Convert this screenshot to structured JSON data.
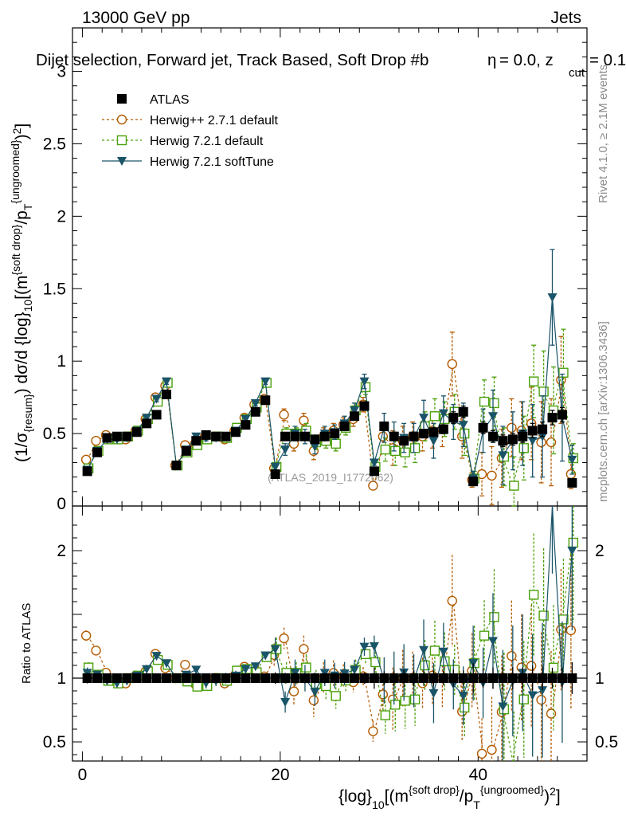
{
  "header": {
    "left": "13000 GeV pp",
    "right": "Jets"
  },
  "chart_data": {
    "type": "line",
    "title": "Dijet selection, Forward jet, Track Based, Soft Drop #b",
    "title_suffix": "= 0.0, z",
    "title_eta": "η",
    "title_cut_sub": "cut",
    "title_tail": " = 0.1",
    "ylabel_parts": [
      "(1/σ",
      "{resum}",
      ") dσ/d {log}",
      "10",
      "[(m",
      "{soft drop}",
      "/p",
      "T",
      "{ungroomed}",
      ")",
      "2",
      "]"
    ],
    "xlabel_parts": [
      "{log}",
      "10",
      "[(m",
      "{soft drop}",
      "/p",
      "T",
      "{ungroomed}",
      ")",
      "2",
      "]"
    ],
    "ratio_ylabel": "Ratio to ATLAS",
    "xlim": [
      -1,
      51
    ],
    "ylim": [
      0,
      3.3
    ],
    "ratio_ylim": [
      0.35,
      2.35
    ],
    "x_ticks": [
      0,
      20,
      40
    ],
    "y_ticks": [
      0.5,
      1,
      1.5,
      2,
      2.5,
      3
    ],
    "y_tick_labels": [
      "0.5",
      "1",
      "1.5",
      "2",
      "2.5",
      "3"
    ],
    "ratio_ticks": [
      0.5,
      1,
      2
    ],
    "ratio_tick_labels": [
      "0.5",
      "1",
      "2"
    ],
    "watermark": "(ATLAS_2019_I1772062)",
    "side_label_top": "Rivet 4.1.0, ≥ 2.1M events",
    "side_label_bottom": "mcplots.cern.ch [arXiv:1306.3436]",
    "x": [
      0.5,
      1.5,
      2.5,
      3.5,
      4.5,
      5.5,
      6.5,
      7.5,
      8.5,
      9.5,
      10.5,
      11.5,
      12.5,
      13.5,
      14.5,
      15.5,
      16.5,
      17.5,
      18.5,
      19.5,
      20.5,
      21.5,
      22.5,
      23.5,
      24.5,
      25.5,
      26.5,
      27.5,
      28.5,
      29.5,
      30.5,
      31.5,
      32.5,
      33.5,
      34.5,
      35.5,
      36.5,
      37.5,
      38.5,
      39.5,
      40.5,
      41.5,
      42.5,
      43.5,
      44.5,
      45.5,
      46.5,
      47.5,
      48.5,
      49.5
    ],
    "series": [
      {
        "name": "ATLAS",
        "color": "#000000",
        "marker": "square-filled",
        "values": [
          0.24,
          0.37,
          0.47,
          0.48,
          0.48,
          0.51,
          0.57,
          0.63,
          0.77,
          0.28,
          0.38,
          0.45,
          0.49,
          0.48,
          0.48,
          0.51,
          0.56,
          0.65,
          0.73,
          0.22,
          0.48,
          0.48,
          0.48,
          0.46,
          0.48,
          0.5,
          0.55,
          0.62,
          0.69,
          0.24,
          0.55,
          0.48,
          0.45,
          0.48,
          0.5,
          0.51,
          0.53,
          0.61,
          0.65,
          0.17,
          0.54,
          0.48,
          0.45,
          0.46,
          0.48,
          0.52,
          0.53,
          0.61,
          0.63,
          0.16
        ],
        "errors": [
          0.01,
          0.01,
          0.01,
          0.01,
          0.01,
          0.01,
          0.01,
          0.01,
          0.02,
          0.01,
          0.01,
          0.01,
          0.01,
          0.01,
          0.01,
          0.01,
          0.01,
          0.02,
          0.02,
          0.01,
          0.02,
          0.02,
          0.02,
          0.02,
          0.02,
          0.02,
          0.02,
          0.02,
          0.03,
          0.02,
          0.03,
          0.03,
          0.03,
          0.03,
          0.03,
          0.03,
          0.03,
          0.04,
          0.04,
          0.02,
          0.04,
          0.04,
          0.04,
          0.04,
          0.04,
          0.05,
          0.05,
          0.05,
          0.05,
          0.02
        ]
      },
      {
        "name": "Herwig++ 2.7.1 default",
        "color": "#b35a00",
        "marker": "circle-open",
        "linestyle": "dashed",
        "values": [
          0.32,
          0.45,
          0.49,
          0.47,
          0.46,
          0.52,
          0.6,
          0.75,
          0.83,
          0.28,
          0.42,
          0.43,
          0.48,
          0.48,
          0.46,
          0.52,
          0.61,
          0.7,
          0.74,
          0.26,
          0.63,
          0.43,
          0.59,
          0.38,
          0.48,
          0.52,
          0.56,
          0.6,
          0.7,
          0.14,
          0.48,
          0.4,
          0.45,
          0.48,
          0.48,
          0.52,
          0.53,
          0.98,
          0.48,
          0.18,
          0.22,
          0.21,
          0.33,
          0.54,
          0.52,
          0.57,
          0.44,
          0.44,
          0.87,
          0.22
        ],
        "errors": [
          0.01,
          0.01,
          0.01,
          0.01,
          0.01,
          0.01,
          0.02,
          0.02,
          0.02,
          0.01,
          0.01,
          0.02,
          0.02,
          0.02,
          0.02,
          0.02,
          0.02,
          0.02,
          0.02,
          0.02,
          0.04,
          0.05,
          0.05,
          0.06,
          0.06,
          0.05,
          0.05,
          0.05,
          0.05,
          0.02,
          0.08,
          0.12,
          0.1,
          0.1,
          0.1,
          0.12,
          0.12,
          0.22,
          0.15,
          0.05,
          0.15,
          0.2,
          0.2,
          0.2,
          0.2,
          0.25,
          0.28,
          0.3,
          0.3,
          0.1
        ]
      },
      {
        "name": "Herwig 7.2.1 default",
        "color": "#4aa00a",
        "marker": "square-open",
        "linestyle": "dashed",
        "values": [
          0.26,
          0.38,
          0.46,
          0.46,
          0.48,
          0.52,
          0.6,
          0.72,
          0.85,
          0.28,
          0.37,
          0.42,
          0.46,
          0.48,
          0.47,
          0.54,
          0.6,
          0.68,
          0.85,
          0.27,
          0.5,
          0.5,
          0.52,
          0.44,
          0.45,
          0.43,
          0.54,
          0.66,
          0.82,
          0.27,
          0.39,
          0.38,
          0.37,
          0.4,
          0.55,
          0.62,
          0.6,
          0.65,
          0.5,
          0.19,
          0.72,
          0.71,
          0.34,
          0.14,
          0.4,
          0.86,
          0.79,
          0.66,
          0.92,
          0.33
        ],
        "errors": [
          0.01,
          0.01,
          0.01,
          0.01,
          0.01,
          0.01,
          0.02,
          0.02,
          0.02,
          0.01,
          0.01,
          0.01,
          0.02,
          0.02,
          0.02,
          0.02,
          0.02,
          0.02,
          0.02,
          0.02,
          0.04,
          0.04,
          0.05,
          0.05,
          0.05,
          0.05,
          0.05,
          0.05,
          0.05,
          0.02,
          0.08,
          0.1,
          0.1,
          0.1,
          0.1,
          0.12,
          0.12,
          0.12,
          0.15,
          0.05,
          0.15,
          0.18,
          0.2,
          0.2,
          0.22,
          0.25,
          0.28,
          0.3,
          0.3,
          0.1
        ]
      },
      {
        "name": "Herwig 7.2.1 softTune",
        "color": "#1a5468",
        "marker": "triangle-down-filled",
        "linestyle": "solid",
        "values": [
          0.25,
          0.38,
          0.46,
          0.46,
          0.47,
          0.52,
          0.61,
          0.74,
          0.86,
          0.28,
          0.39,
          0.48,
          0.47,
          0.47,
          0.48,
          0.52,
          0.6,
          0.71,
          0.86,
          0.27,
          0.39,
          0.5,
          0.48,
          0.41,
          0.5,
          0.51,
          0.57,
          0.66,
          0.86,
          0.3,
          0.54,
          0.48,
          0.47,
          0.47,
          0.61,
          0.45,
          0.64,
          0.58,
          0.56,
          0.19,
          0.52,
          0.62,
          0.35,
          0.45,
          0.5,
          0.45,
          0.48,
          1.44,
          0.61,
          0.32
        ],
        "errors": [
          0.01,
          0.01,
          0.01,
          0.01,
          0.01,
          0.01,
          0.02,
          0.02,
          0.02,
          0.01,
          0.01,
          0.01,
          0.02,
          0.02,
          0.02,
          0.02,
          0.02,
          0.02,
          0.02,
          0.02,
          0.04,
          0.05,
          0.05,
          0.05,
          0.05,
          0.05,
          0.05,
          0.05,
          0.05,
          0.02,
          0.1,
          0.1,
          0.1,
          0.1,
          0.12,
          0.12,
          0.12,
          0.12,
          0.15,
          0.05,
          0.15,
          0.18,
          0.2,
          0.2,
          0.22,
          0.25,
          0.28,
          0.33,
          0.3,
          0.1
        ]
      }
    ]
  }
}
